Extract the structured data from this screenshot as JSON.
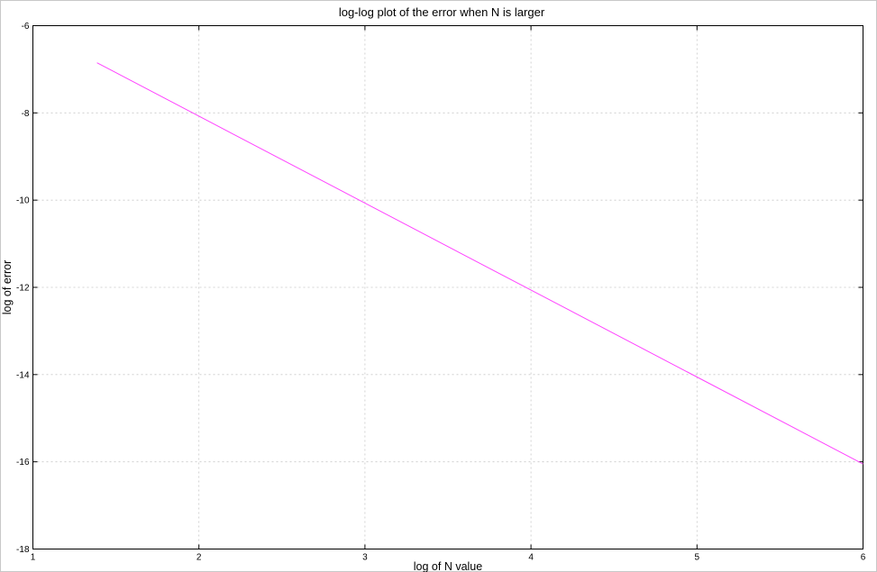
{
  "chart_data": {
    "type": "line",
    "title": "log-log plot of the error when N is larger",
    "xlabel": "log of N value",
    "ylabel": "log of error",
    "xlim": [
      1,
      6
    ],
    "ylim": [
      -18,
      -6
    ],
    "xticks": [
      1,
      2,
      3,
      4,
      5,
      6
    ],
    "yticks": [
      -18,
      -16,
      -14,
      -12,
      -10,
      -8,
      -6
    ],
    "grid": true,
    "series": [
      {
        "color": "#ff44ff",
        "x": [
          1.386,
          6.0
        ],
        "y": [
          -6.85,
          -16.05
        ]
      }
    ]
  }
}
